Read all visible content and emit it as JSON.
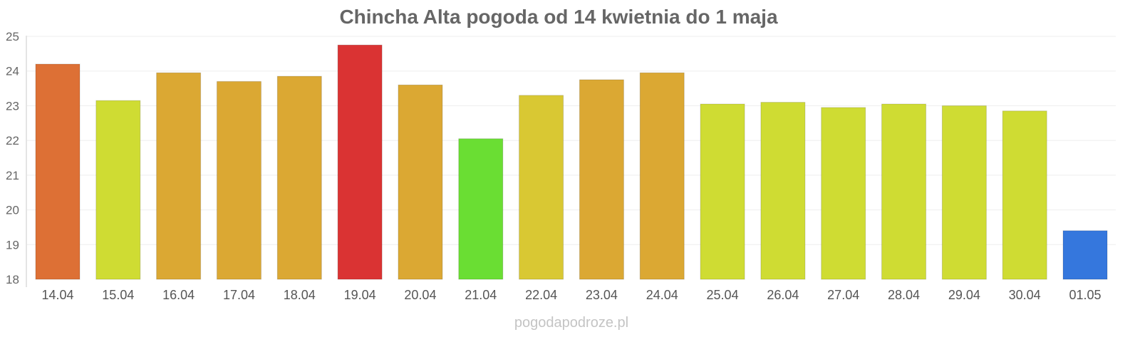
{
  "chart_data": {
    "type": "bar",
    "title": "Chincha Alta pogoda od 14 kwietnia do 1 maja",
    "xlabel": "",
    "ylabel": "",
    "categories": [
      "14.04",
      "15.04",
      "16.04",
      "17.04",
      "18.04",
      "19.04",
      "20.04",
      "21.04",
      "22.04",
      "23.04",
      "24.04",
      "25.04",
      "26.04",
      "27.04",
      "28.04",
      "29.04",
      "30.04",
      "01.05"
    ],
    "values": [
      24.2,
      23.15,
      23.95,
      23.7,
      23.85,
      24.75,
      23.6,
      22.05,
      23.3,
      23.75,
      23.95,
      23.05,
      23.1,
      22.95,
      23.05,
      23.0,
      22.85,
      19.4
    ],
    "colors": [
      "#dd7035",
      "#cfdc33",
      "#dba833",
      "#dba833",
      "#dba833",
      "#da3333",
      "#dba833",
      "#6ade33",
      "#d9c833",
      "#dba833",
      "#dba833",
      "#cfdc33",
      "#cfdc33",
      "#cfdc33",
      "#cfdc33",
      "#cfdc33",
      "#cfdc33",
      "#3577dd"
    ],
    "ylim": [
      18,
      25
    ],
    "yticks": [
      "18",
      "19",
      "20",
      "21",
      "22",
      "23",
      "24",
      "25"
    ],
    "grid": true,
    "legend": "none"
  },
  "footer": {
    "source": "pogodapodroze.pl"
  }
}
